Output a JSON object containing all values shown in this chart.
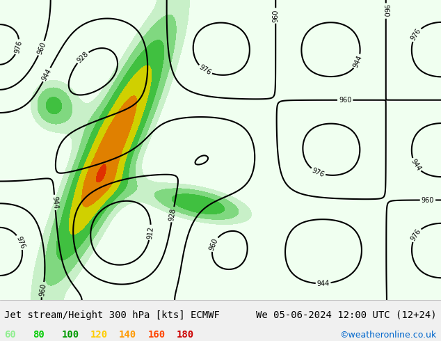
{
  "title_left": "Jet stream/Height 300 hPa [kts] ECMWF",
  "title_right": "We 05-06-2024 12:00 UTC (12+24)",
  "credit": "©weatheronline.co.uk",
  "legend_values": [
    60,
    80,
    100,
    120,
    140,
    160,
    180
  ],
  "legend_colors": [
    "#90ee90",
    "#00cc00",
    "#009900",
    "#ffcc00",
    "#ff9900",
    "#ff4400",
    "#cc0000"
  ],
  "bg_color": "#e8f4e8",
  "land_color": "#c8e8c8",
  "sea_color": "#ddeedd",
  "contour_color": "#000000",
  "contour_levels": [
    912,
    944,
    960,
    976
  ],
  "wind_fill_colors": [
    "#b8e8b8",
    "#80d880",
    "#40c840",
    "#c8c800",
    "#e88800",
    "#e04000",
    "#c00000"
  ],
  "font_size_title": 10,
  "font_size_legend": 10,
  "bottom_bar_color": "#f0f0f0",
  "figsize": [
    6.34,
    4.9
  ],
  "dpi": 100
}
